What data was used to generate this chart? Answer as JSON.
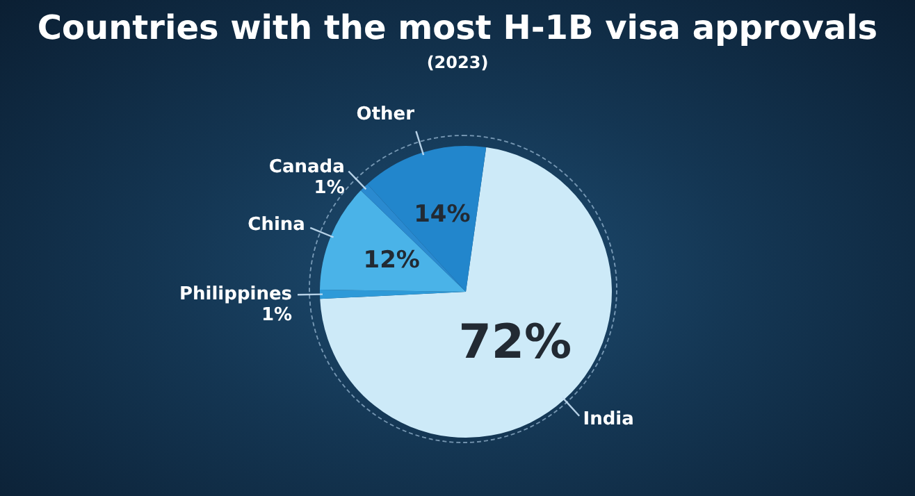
{
  "chart_data": {
    "type": "pie",
    "title": "Countries with the most H-1B visa approvals",
    "subtitle": "(2023)",
    "categories": [
      "India",
      "Philippines",
      "China",
      "Canada",
      "Other"
    ],
    "values": [
      72,
      1,
      12,
      1,
      14
    ],
    "colors": [
      "#cdeaf8",
      "#2e9ad8",
      "#4ab3e8",
      "#2a8ad0",
      "#2286cc"
    ],
    "value_labels": [
      "72%",
      "1%",
      "12%",
      "1%",
      "14%"
    ],
    "legend": false
  }
}
